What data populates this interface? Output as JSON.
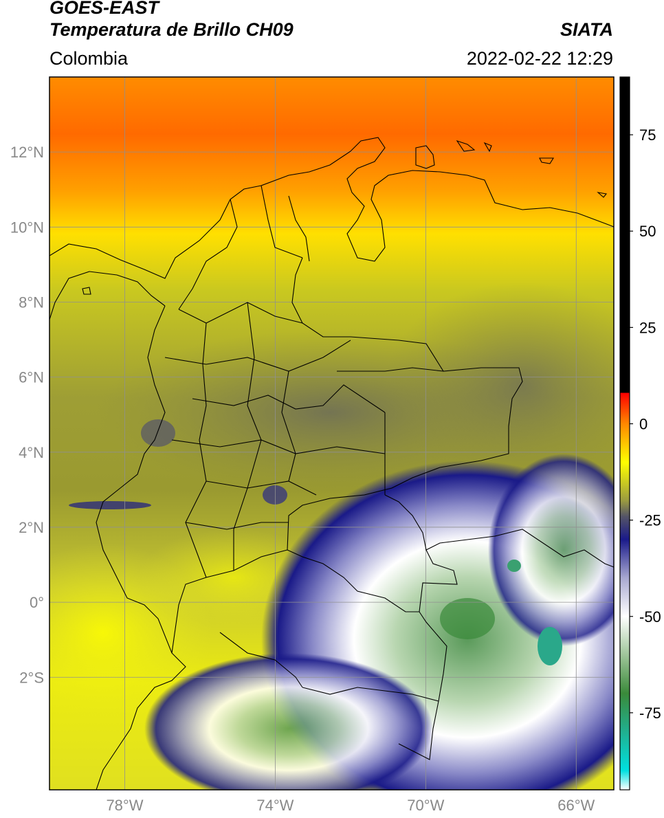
{
  "header": {
    "satellite": "GOES-EAST",
    "product": "Temperatura de Brillo CH09",
    "organization": "SIATA",
    "region": "Colombia",
    "timestamp": "2022-02-22 12:29"
  },
  "map": {
    "extent": {
      "lon_min": -80,
      "lon_max": -65,
      "lat_min": -5,
      "lat_max": 14
    },
    "lat_ticks": [
      {
        "value": 12,
        "label": "12°N"
      },
      {
        "value": 10,
        "label": "10°N"
      },
      {
        "value": 8,
        "label": "8°N"
      },
      {
        "value": 6,
        "label": "6°N"
      },
      {
        "value": 4,
        "label": "4°N"
      },
      {
        "value": 2,
        "label": "2°N"
      },
      {
        "value": 0,
        "label": "0°"
      },
      {
        "value": -2,
        "label": "2°S"
      }
    ],
    "lon_ticks": [
      {
        "value": -78,
        "label": "78°W"
      },
      {
        "value": -74,
        "label": "74°W"
      },
      {
        "value": -70,
        "label": "70°W"
      },
      {
        "value": -66,
        "label": "66°W"
      }
    ],
    "grid": true
  },
  "colorbar": {
    "range": [
      -95,
      90
    ],
    "ticks": [
      {
        "value": 75,
        "label": "75"
      },
      {
        "value": 50,
        "label": "50"
      },
      {
        "value": 25,
        "label": "25"
      },
      {
        "value": 0,
        "label": "0"
      },
      {
        "value": -25,
        "label": "-25"
      },
      {
        "value": -50,
        "label": "-50"
      },
      {
        "value": -75,
        "label": "-75"
      }
    ],
    "stops": [
      {
        "value": -95,
        "color": "#ffffff"
      },
      {
        "value": -90,
        "color": "#00e0e0"
      },
      {
        "value": -80,
        "color": "#20b090"
      },
      {
        "value": -70,
        "color": "#3a8a3a"
      },
      {
        "value": -60,
        "color": "#9fc59a"
      },
      {
        "value": -50,
        "color": "#ffffff"
      },
      {
        "value": -40,
        "color": "#a8a8d0"
      },
      {
        "value": -30,
        "color": "#1a1a8a"
      },
      {
        "value": -24,
        "color": "#555566"
      },
      {
        "value": -20,
        "color": "#9a9a40"
      },
      {
        "value": -10,
        "color": "#ffff00"
      },
      {
        "value": 0,
        "color": "#ff8800"
      },
      {
        "value": 8,
        "color": "#ff0000"
      },
      {
        "value": 8.01,
        "color": "#000000"
      },
      {
        "value": 90,
        "color": "#000000"
      }
    ]
  }
}
